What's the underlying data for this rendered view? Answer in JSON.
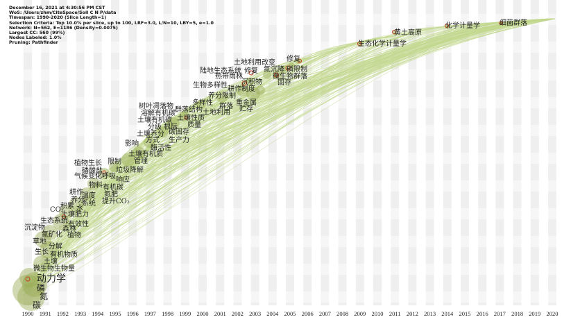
{
  "info": {
    "lines": [
      "December 16, 2021 at 4:30:56 PM CST",
      "WoS: /Users/zhm/CiteSpace/Soil C N P/data",
      "Timespan: 1990-2020 (Slice Length=1)",
      "Selection Criteria: Top 10.0% per slice, up to 100, LRF=3.0, L/N=10, LBY=5, e=1.0",
      "Network: N=562, E=1186 (Density=0.0075)",
      "Largest CC: 560 (99%)",
      "Nodes Labeled: 1.0%",
      "Pruning: Pathfinder"
    ]
  },
  "years": [
    "1990",
    "1991",
    "1992",
    "1993",
    "1994",
    "1995",
    "1996",
    "1997",
    "1998",
    "1999",
    "2000",
    "2001",
    "2002",
    "2003",
    "2004",
    "2005",
    "2006",
    "2007",
    "2008",
    "2009",
    "2010",
    "2011",
    "2012",
    "2013",
    "2014",
    "2015",
    "2016",
    "2017",
    "2018",
    "2019",
    "2020"
  ],
  "keywords": [
    "植物生长",
    "磷酸盐",
    "气候变化",
    "呼吸",
    "物料",
    "有机碳",
    "耕作",
    "温度",
    "氮肥",
    "养分",
    "系统",
    "提升CO₂",
    "积累",
    "水",
    "CO₂",
    "土壤肥力",
    "生态系统",
    "有效性",
    "沉淀物",
    "森林",
    "氮矿化",
    "植物",
    "草地",
    "分解",
    "生长",
    "有机物质",
    "土壤",
    "微生物生物量",
    "动力学",
    "磷",
    "氮",
    "碳",
    "限制",
    "垃圾降解",
    "响应",
    "树叶凋落物",
    "群落结构",
    "溶解有机碳",
    "土壤性质",
    "土壤有机碳",
    "分级",
    "根际",
    "质量",
    "土壤养分",
    "碳固存",
    "方式",
    "生产力",
    "影响",
    "酶活性",
    "土壤有机质",
    "管理",
    "多样性",
    "群落",
    "土地利用",
    "重金属",
    "贮存",
    "土地利用改变",
    "修复",
    "陆地生态系统",
    "修复",
    "氮沉降",
    "磷限制",
    "热带雨林",
    "微生物群落",
    "沉积物",
    "固存",
    "生物多样性",
    "耕作制度",
    "养分限制",
    "黄土高原",
    "化学计量学",
    "细菌群落",
    "生态化学计量学"
  ],
  "colors": {
    "link": "#c3d98f",
    "node": "#9aab55",
    "burst": "#c0401a",
    "stripe": "#efefef"
  }
}
